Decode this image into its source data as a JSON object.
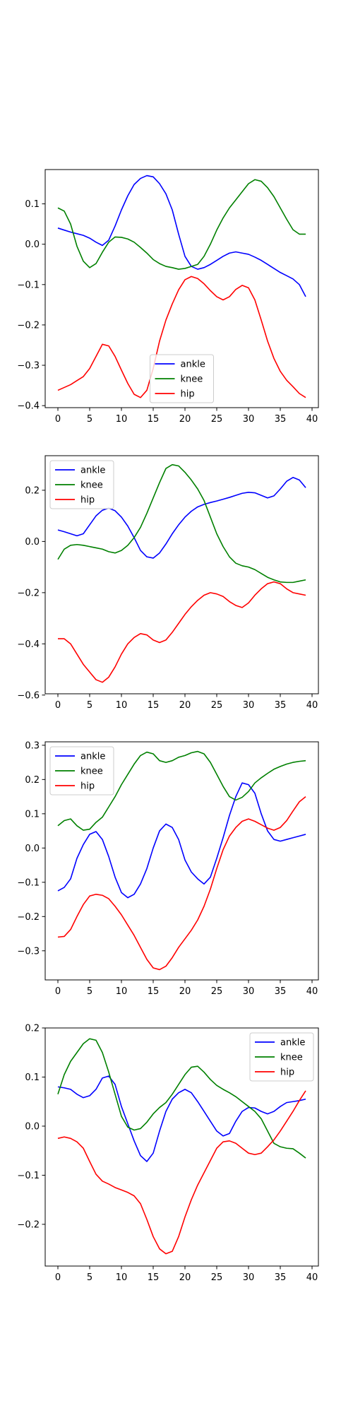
{
  "chart_data": [
    {
      "type": "line",
      "x": [
        0,
        1,
        2,
        3,
        4,
        5,
        6,
        7,
        8,
        9,
        10,
        11,
        12,
        13,
        14,
        15,
        16,
        17,
        18,
        19,
        20,
        21,
        22,
        23,
        24,
        25,
        26,
        27,
        28,
        29,
        30,
        31,
        32,
        33,
        34,
        35,
        36,
        37,
        38,
        39
      ],
      "xlim": [
        -2,
        41
      ],
      "ylim": [
        -0.405,
        0.185
      ],
      "x_ticks": [
        0,
        5,
        10,
        15,
        20,
        25,
        30,
        35,
        40
      ],
      "x_tick_labels": [
        "0",
        "5",
        "10",
        "15",
        "20",
        "25",
        "30",
        "35",
        "40"
      ],
      "y_ticks": [
        0.1,
        0.0,
        -0.1,
        -0.2,
        -0.3,
        -0.4
      ],
      "y_tick_labels": [
        "0.1",
        "0.0",
        "−0.1",
        "−0.2",
        "−0.3",
        "−0.4"
      ],
      "legend_position": "lower-center",
      "series": [
        {
          "name": "ankle",
          "color": "#0000ff",
          "values": [
            0.04,
            0.035,
            0.03,
            0.026,
            0.022,
            0.015,
            0.005,
            -0.003,
            0.01,
            0.045,
            0.085,
            0.12,
            0.148,
            0.163,
            0.17,
            0.167,
            0.15,
            0.125,
            0.085,
            0.025,
            -0.03,
            -0.055,
            -0.062,
            -0.058,
            -0.05,
            -0.04,
            -0.03,
            -0.022,
            -0.019,
            -0.022,
            -0.025,
            -0.032,
            -0.04,
            -0.05,
            -0.06,
            -0.07,
            -0.078,
            -0.086,
            -0.1,
            -0.13
          ]
        },
        {
          "name": "knee",
          "color": "#008000",
          "values": [
            0.09,
            0.082,
            0.05,
            -0.005,
            -0.042,
            -0.058,
            -0.048,
            -0.02,
            0.005,
            0.018,
            0.017,
            0.013,
            0.005,
            -0.008,
            -0.022,
            -0.038,
            -0.048,
            -0.055,
            -0.058,
            -0.062,
            -0.06,
            -0.055,
            -0.05,
            -0.03,
            0.0,
            0.035,
            0.065,
            0.09,
            0.11,
            0.13,
            0.15,
            0.16,
            0.156,
            0.14,
            0.118,
            0.09,
            0.062,
            0.036,
            0.025,
            0.025
          ]
        },
        {
          "name": "hip",
          "color": "#ff0000",
          "values": [
            -0.362,
            -0.355,
            -0.348,
            -0.338,
            -0.328,
            -0.308,
            -0.278,
            -0.248,
            -0.252,
            -0.278,
            -0.312,
            -0.345,
            -0.372,
            -0.38,
            -0.362,
            -0.308,
            -0.24,
            -0.188,
            -0.148,
            -0.113,
            -0.088,
            -0.08,
            -0.085,
            -0.098,
            -0.115,
            -0.13,
            -0.138,
            -0.13,
            -0.112,
            -0.102,
            -0.108,
            -0.138,
            -0.188,
            -0.24,
            -0.283,
            -0.315,
            -0.337,
            -0.353,
            -0.37,
            -0.38
          ]
        }
      ]
    },
    {
      "type": "line",
      "x": [
        0,
        1,
        2,
        3,
        4,
        5,
        6,
        7,
        8,
        9,
        10,
        11,
        12,
        13,
        14,
        15,
        16,
        17,
        18,
        19,
        20,
        21,
        22,
        23,
        24,
        25,
        26,
        27,
        28,
        29,
        30,
        31,
        32,
        33,
        34,
        35,
        36,
        37,
        38,
        39
      ],
      "xlim": [
        -2,
        41
      ],
      "ylim": [
        -0.595,
        0.335
      ],
      "x_ticks": [
        0,
        5,
        10,
        15,
        20,
        25,
        30,
        35,
        40
      ],
      "x_tick_labels": [
        "0",
        "5",
        "10",
        "15",
        "20",
        "25",
        "30",
        "35",
        "40"
      ],
      "y_ticks": [
        0.2,
        0.0,
        -0.2,
        -0.4,
        -0.6
      ],
      "y_tick_labels": [
        "0.2",
        "0.0",
        "−0.2",
        "−0.4",
        "−0.6"
      ],
      "legend_position": "upper-left",
      "series": [
        {
          "name": "ankle",
          "color": "#0000ff",
          "values": [
            0.045,
            0.038,
            0.03,
            0.022,
            0.03,
            0.065,
            0.1,
            0.122,
            0.13,
            0.12,
            0.095,
            0.06,
            0.015,
            -0.035,
            -0.06,
            -0.065,
            -0.045,
            -0.01,
            0.03,
            0.065,
            0.095,
            0.118,
            0.135,
            0.145,
            0.152,
            0.158,
            0.165,
            0.172,
            0.18,
            0.188,
            0.192,
            0.19,
            0.18,
            0.17,
            0.178,
            0.205,
            0.235,
            0.25,
            0.24,
            0.21
          ]
        },
        {
          "name": "knee",
          "color": "#008000",
          "values": [
            -0.07,
            -0.03,
            -0.015,
            -0.012,
            -0.015,
            -0.02,
            -0.025,
            -0.03,
            -0.04,
            -0.045,
            -0.035,
            -0.015,
            0.015,
            0.055,
            0.11,
            0.17,
            0.23,
            0.285,
            0.3,
            0.295,
            0.27,
            0.24,
            0.205,
            0.16,
            0.095,
            0.03,
            -0.02,
            -0.06,
            -0.085,
            -0.095,
            -0.1,
            -0.11,
            -0.125,
            -0.14,
            -0.15,
            -0.158,
            -0.16,
            -0.16,
            -0.155,
            -0.15
          ]
        },
        {
          "name": "hip",
          "color": "#ff0000",
          "values": [
            -0.38,
            -0.38,
            -0.4,
            -0.44,
            -0.48,
            -0.51,
            -0.54,
            -0.55,
            -0.53,
            -0.49,
            -0.44,
            -0.4,
            -0.375,
            -0.36,
            -0.365,
            -0.385,
            -0.395,
            -0.385,
            -0.355,
            -0.32,
            -0.285,
            -0.255,
            -0.23,
            -0.21,
            -0.2,
            -0.205,
            -0.215,
            -0.235,
            -0.25,
            -0.258,
            -0.24,
            -0.21,
            -0.185,
            -0.165,
            -0.158,
            -0.165,
            -0.185,
            -0.2,
            -0.205,
            -0.21
          ]
        }
      ]
    },
    {
      "type": "line",
      "x": [
        0,
        1,
        2,
        3,
        4,
        5,
        6,
        7,
        8,
        9,
        10,
        11,
        12,
        13,
        14,
        15,
        16,
        17,
        18,
        19,
        20,
        21,
        22,
        23,
        24,
        25,
        26,
        27,
        28,
        29,
        30,
        31,
        32,
        33,
        34,
        35,
        36,
        37,
        38,
        39
      ],
      "xlim": [
        -2,
        41
      ],
      "ylim": [
        -0.385,
        0.31
      ],
      "x_ticks": [
        0,
        5,
        10,
        15,
        20,
        25,
        30,
        35,
        40
      ],
      "x_tick_labels": [
        "0",
        "5",
        "10",
        "15",
        "20",
        "25",
        "30",
        "35",
        "40"
      ],
      "y_ticks": [
        0.3,
        0.2,
        0.1,
        0.0,
        -0.1,
        -0.2,
        -0.3
      ],
      "y_tick_labels": [
        "0.3",
        "0.2",
        "0.1",
        "0.0",
        "−0.1",
        "−0.2",
        "−0.3"
      ],
      "legend_position": "upper-left",
      "series": [
        {
          "name": "ankle",
          "color": "#0000ff",
          "values": [
            -0.125,
            -0.115,
            -0.09,
            -0.03,
            0.01,
            0.04,
            0.048,
            0.025,
            -0.025,
            -0.085,
            -0.13,
            -0.145,
            -0.135,
            -0.105,
            -0.06,
            0.0,
            0.05,
            0.07,
            0.06,
            0.025,
            -0.035,
            -0.07,
            -0.09,
            -0.105,
            -0.085,
            -0.03,
            0.03,
            0.095,
            0.15,
            0.19,
            0.185,
            0.16,
            0.1,
            0.05,
            0.025,
            0.02,
            0.025,
            0.03,
            0.035,
            0.04
          ]
        },
        {
          "name": "knee",
          "color": "#008000",
          "values": [
            0.065,
            0.08,
            0.085,
            0.065,
            0.052,
            0.055,
            0.075,
            0.09,
            0.12,
            0.15,
            0.185,
            0.215,
            0.245,
            0.27,
            0.28,
            0.275,
            0.255,
            0.25,
            0.255,
            0.265,
            0.27,
            0.278,
            0.282,
            0.275,
            0.25,
            0.215,
            0.18,
            0.15,
            0.14,
            0.148,
            0.165,
            0.19,
            0.205,
            0.218,
            0.23,
            0.238,
            0.245,
            0.25,
            0.253,
            0.255
          ]
        },
        {
          "name": "hip",
          "color": "#ff0000",
          "values": [
            -0.26,
            -0.258,
            -0.238,
            -0.2,
            -0.165,
            -0.14,
            -0.135,
            -0.138,
            -0.148,
            -0.17,
            -0.195,
            -0.225,
            -0.255,
            -0.29,
            -0.325,
            -0.35,
            -0.355,
            -0.345,
            -0.32,
            -0.29,
            -0.265,
            -0.24,
            -0.21,
            -0.17,
            -0.12,
            -0.06,
            -0.005,
            0.035,
            0.06,
            0.078,
            0.085,
            0.078,
            0.068,
            0.058,
            0.052,
            0.06,
            0.08,
            0.108,
            0.135,
            0.15
          ]
        }
      ]
    },
    {
      "type": "line",
      "x": [
        0,
        1,
        2,
        3,
        4,
        5,
        6,
        7,
        8,
        9,
        10,
        11,
        12,
        13,
        14,
        15,
        16,
        17,
        18,
        19,
        20,
        21,
        22,
        23,
        24,
        25,
        26,
        27,
        28,
        29,
        30,
        31,
        32,
        33,
        34,
        35,
        36,
        37,
        38,
        39
      ],
      "xlim": [
        -2,
        41
      ],
      "ylim": [
        -0.285,
        0.2
      ],
      "x_ticks": [
        0,
        5,
        10,
        15,
        20,
        25,
        30,
        35,
        40
      ],
      "x_tick_labels": [
        "0",
        "5",
        "10",
        "15",
        "20",
        "25",
        "30",
        "35",
        "40"
      ],
      "y_ticks": [
        0.2,
        0.1,
        0.0,
        -0.1,
        -0.2
      ],
      "y_tick_labels": [
        "0.2",
        "0.1",
        "0.0",
        "−0.1",
        "−0.2"
      ],
      "legend_position": "upper-right",
      "series": [
        {
          "name": "ankle",
          "color": "#0000ff",
          "values": [
            0.08,
            0.078,
            0.075,
            0.065,
            0.058,
            0.062,
            0.075,
            0.098,
            0.102,
            0.085,
            0.04,
            0.005,
            -0.03,
            -0.06,
            -0.072,
            -0.055,
            -0.01,
            0.03,
            0.055,
            0.068,
            0.075,
            0.068,
            0.05,
            0.03,
            0.01,
            -0.01,
            -0.02,
            -0.015,
            0.01,
            0.03,
            0.038,
            0.037,
            0.03,
            0.025,
            0.03,
            0.04,
            0.048,
            0.05,
            0.052,
            0.055
          ]
        },
        {
          "name": "knee",
          "color": "#008000",
          "values": [
            0.065,
            0.105,
            0.132,
            0.15,
            0.168,
            0.178,
            0.175,
            0.15,
            0.11,
            0.065,
            0.02,
            -0.002,
            -0.008,
            -0.005,
            0.008,
            0.025,
            0.038,
            0.048,
            0.065,
            0.085,
            0.105,
            0.12,
            0.122,
            0.11,
            0.095,
            0.083,
            0.075,
            0.068,
            0.06,
            0.05,
            0.04,
            0.03,
            0.015,
            -0.01,
            -0.035,
            -0.042,
            -0.045,
            -0.046,
            -0.055,
            -0.065
          ]
        },
        {
          "name": "hip",
          "color": "#ff0000",
          "values": [
            -0.025,
            -0.022,
            -0.025,
            -0.032,
            -0.045,
            -0.072,
            -0.098,
            -0.112,
            -0.118,
            -0.125,
            -0.13,
            -0.135,
            -0.142,
            -0.158,
            -0.19,
            -0.225,
            -0.25,
            -0.26,
            -0.255,
            -0.225,
            -0.185,
            -0.15,
            -0.12,
            -0.095,
            -0.07,
            -0.045,
            -0.032,
            -0.03,
            -0.035,
            -0.045,
            -0.055,
            -0.058,
            -0.055,
            -0.042,
            -0.028,
            -0.01,
            0.01,
            0.03,
            0.052,
            0.072
          ]
        }
      ]
    }
  ]
}
